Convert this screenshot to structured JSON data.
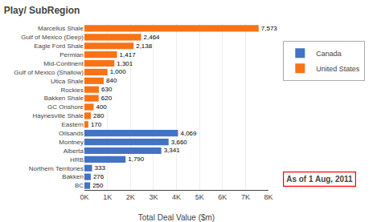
{
  "chart_data": {
    "type": "bar",
    "orientation": "horizontal",
    "title": "Play/ SubRegion",
    "xlabel": "Total Deal Value ($m)",
    "categories": [
      "Marcellus Shale",
      "Gulf of Mexico (Deep)",
      "Eagle Ford Shale",
      "Permian",
      "Mid-Continent",
      "Gulf of Mexico (Shallow)",
      "Utica Shale",
      "Rockies",
      "Bakken Shale",
      "GC Onshore",
      "Haynesville Shale",
      "Eastern",
      "Oilsands",
      "Montney",
      "Alberta",
      "HRB",
      "Northern Territories",
      "Bakken",
      "BC"
    ],
    "series": [
      {
        "name": "Canada",
        "color": "#4472C4",
        "values": [
          null,
          null,
          null,
          null,
          null,
          null,
          null,
          null,
          null,
          null,
          null,
          null,
          4069,
          3660,
          3341,
          1790,
          333,
          276,
          250
        ],
        "value_labels": [
          null,
          null,
          null,
          null,
          null,
          null,
          null,
          null,
          null,
          null,
          null,
          null,
          "4,069",
          "3,660",
          "3,341",
          "1,790",
          "333",
          "276",
          "250"
        ]
      },
      {
        "name": "United States",
        "color": "#F97316",
        "values": [
          7573,
          2464,
          2138,
          1417,
          1301,
          1000,
          840,
          630,
          620,
          400,
          280,
          170,
          null,
          null,
          null,
          null,
          null,
          null,
          null
        ],
        "value_labels": [
          "7,573",
          "2,464",
          "2,138",
          "1,417",
          "1,301",
          "1,000",
          "840",
          "630",
          "620",
          "400",
          "280",
          "170",
          null,
          null,
          null,
          null,
          null,
          null,
          null
        ]
      }
    ],
    "data_labels": true,
    "annotation": "As of 1 Aug, 2011",
    "xlim": [
      0,
      8000
    ],
    "xticks": [
      {
        "value": 0,
        "label": "0K"
      },
      {
        "value": 1000,
        "label": "1K"
      },
      {
        "value": 2000,
        "label": "2K"
      },
      {
        "value": 3000,
        "label": "3K"
      },
      {
        "value": 4000,
        "label": "4K"
      },
      {
        "value": 5000,
        "label": "5K"
      },
      {
        "value": 6000,
        "label": "6K"
      },
      {
        "value": 7000,
        "label": "7K"
      },
      {
        "value": 8000,
        "label": "8K"
      }
    ],
    "grid": true,
    "legend": "upper right"
  }
}
